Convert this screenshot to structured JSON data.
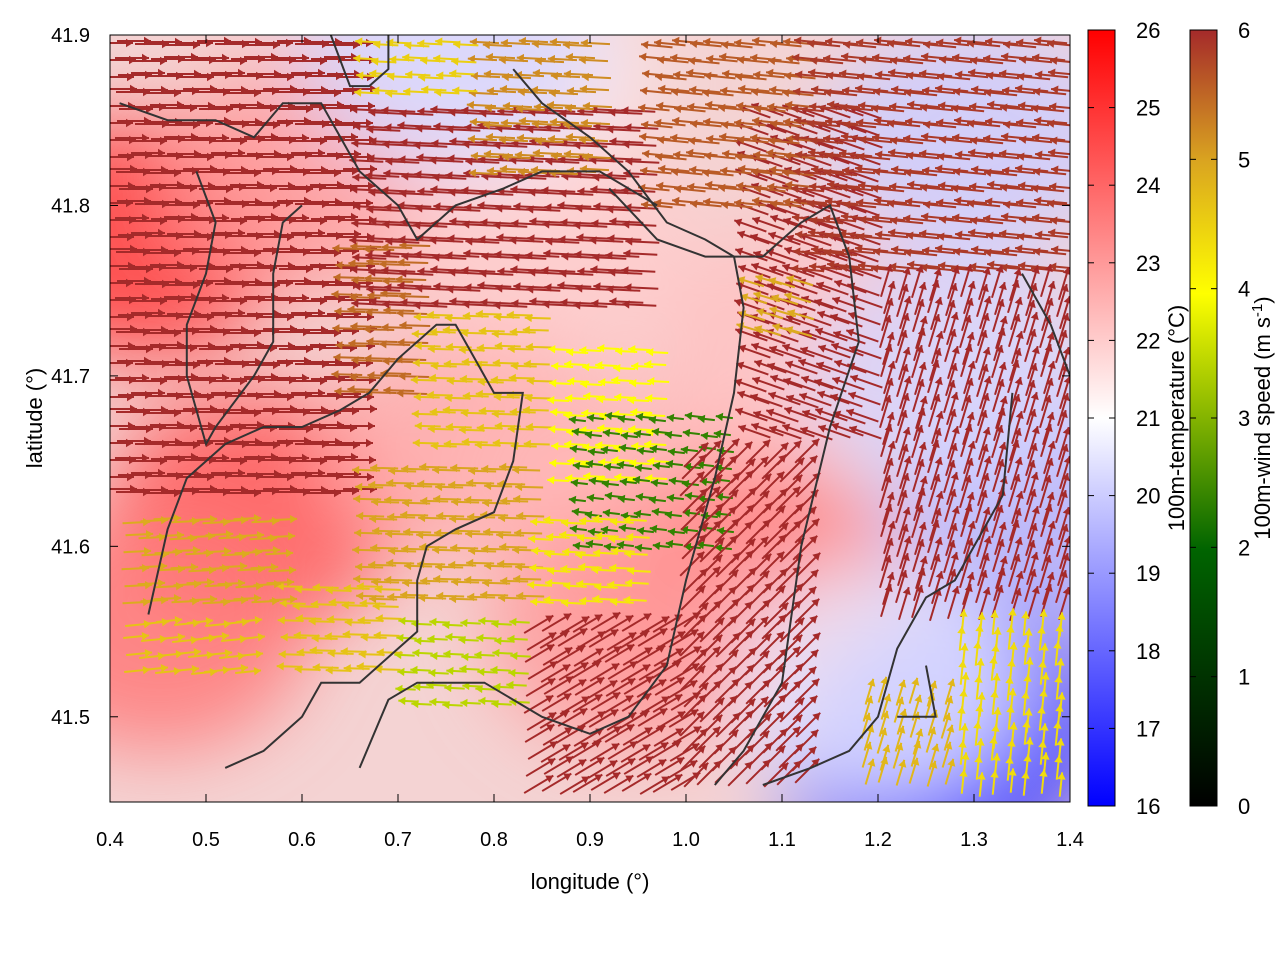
{
  "chart_data": {
    "type": "heatmap",
    "title": "",
    "xlabel": "longitude (°)",
    "ylabel": "latitude (°)",
    "xlim": [
      0.4,
      1.4
    ],
    "ylim": [
      41.45,
      41.9
    ],
    "x_ticks": [
      "0.4",
      "0.5",
      "0.6",
      "0.7",
      "0.8",
      "0.9",
      "1.0",
      "1.1",
      "1.2",
      "1.3",
      "1.4"
    ],
    "x_tick_values": [
      0.4,
      0.5,
      0.6,
      0.7,
      0.8,
      0.9,
      1.0,
      1.1,
      1.2,
      1.3,
      1.4
    ],
    "y_ticks": [
      "41.5",
      "41.6",
      "41.7",
      "41.8",
      "41.9"
    ],
    "y_tick_values": [
      41.5,
      41.6,
      41.7,
      41.8,
      41.9
    ],
    "temperature_colorbar": {
      "label": "100m-temperature (°C)",
      "range": [
        16,
        26
      ],
      "ticks": [
        "16",
        "17",
        "18",
        "19",
        "20",
        "21",
        "22",
        "23",
        "24",
        "25",
        "26"
      ],
      "colors": [
        "#0000ff",
        "#ffffff",
        "#ff0000"
      ]
    },
    "wind_colorbar": {
      "label_main": "100m-wind speed (m s",
      "label_sup": "-1",
      "label_end": ")",
      "range": [
        0,
        6
      ],
      "ticks": [
        "0",
        "1",
        "2",
        "3",
        "4",
        "5",
        "6"
      ],
      "colors": [
        "#000000",
        "#006400",
        "#ffff00",
        "#daa520",
        "#a52a2a"
      ]
    },
    "temperature_regions": [
      {
        "lon": 0.43,
        "lat": 41.78,
        "value": 24.8
      },
      {
        "lon": 0.55,
        "lat": 41.62,
        "value": 24.3
      },
      {
        "lon": 0.45,
        "lat": 41.55,
        "value": 23.6
      },
      {
        "lon": 0.62,
        "lat": 41.82,
        "value": 22.9
      },
      {
        "lon": 0.78,
        "lat": 41.66,
        "value": 22.6
      },
      {
        "lon": 0.95,
        "lat": 41.63,
        "value": 22.4
      },
      {
        "lon": 1.07,
        "lat": 41.58,
        "value": 23.5
      },
      {
        "lon": 1.12,
        "lat": 41.72,
        "value": 22.2
      },
      {
        "lon": 0.85,
        "lat": 41.78,
        "value": 22.0
      },
      {
        "lon": 0.95,
        "lat": 41.55,
        "value": 23.0
      },
      {
        "lon": 0.8,
        "lat": 41.88,
        "value": 21.4
      },
      {
        "lon": 0.75,
        "lat": 41.89,
        "value": 20.2
      },
      {
        "lon": 1.3,
        "lat": 41.84,
        "value": 20.0
      },
      {
        "lon": 1.37,
        "lat": 41.62,
        "value": 19.5
      },
      {
        "lon": 1.3,
        "lat": 41.5,
        "value": 17.6
      },
      {
        "lon": 1.25,
        "lat": 41.47,
        "value": 17.2
      },
      {
        "lon": 1.2,
        "lat": 41.52,
        "value": 20.6
      },
      {
        "lon": 1.28,
        "lat": 41.7,
        "value": 20.2
      }
    ],
    "wind_regions": [
      {
        "lon_range": [
          0.4,
          0.66
        ],
        "lat_range": [
          41.63,
          41.9
        ],
        "u": 1,
        "v": 0,
        "speed": 6,
        "note_free": ""
      },
      {
        "lon_range": [
          0.64,
          0.72
        ],
        "lat_range": [
          41.69,
          41.78
        ],
        "u": -1,
        "v": 0.03,
        "speed": 5.2
      },
      {
        "lon_range": [
          0.72,
          0.86
        ],
        "lat_range": [
          41.66,
          41.74
        ],
        "u": -1,
        "v": 0.03,
        "speed": 4.0
      },
      {
        "lon_range": [
          0.86,
          0.98
        ],
        "lat_range": [
          41.64,
          41.72
        ],
        "u": -1,
        "v": 0.05,
        "speed": 3.0
      },
      {
        "lon_range": [
          0.88,
          1.04
        ],
        "lat_range": [
          41.6,
          41.68
        ],
        "u": -1,
        "v": 0.12,
        "speed": 1.8
      },
      {
        "lon_range": [
          0.66,
          0.84
        ],
        "lat_range": [
          41.57,
          41.65
        ],
        "u": -1,
        "v": 0.03,
        "speed": 4.5
      },
      {
        "lon_range": [
          0.84,
          0.96
        ],
        "lat_range": [
          41.56,
          41.62
        ],
        "u": -1,
        "v": 0.05,
        "speed": 3.4
      },
      {
        "lon_range": [
          0.7,
          0.84
        ],
        "lat_range": [
          41.5,
          41.56
        ],
        "u": -1,
        "v": 0.05,
        "speed": 2.6
      },
      {
        "lon_range": [
          0.58,
          0.7
        ],
        "lat_range": [
          41.52,
          41.58
        ],
        "u": -1,
        "v": 0.03,
        "speed": 4.0
      },
      {
        "lon_range": [
          0.42,
          0.58
        ],
        "lat_range": [
          41.56,
          41.62
        ],
        "u": 1,
        "v": 0.05,
        "speed": 4.4
      },
      {
        "lon_range": [
          0.42,
          0.56
        ],
        "lat_range": [
          41.52,
          41.56
        ],
        "u": 1,
        "v": 0.1,
        "speed": 4.0
      },
      {
        "lon_range": [
          0.84,
          1.0
        ],
        "lat_range": [
          41.46,
          41.56
        ],
        "u": 1,
        "v": 0.6,
        "speed": 6
      },
      {
        "lon_range": [
          1.0,
          1.14
        ],
        "lat_range": [
          41.46,
          41.66
        ],
        "u": 0.9,
        "v": 0.9,
        "speed": 6
      },
      {
        "lon_range": [
          1.06,
          1.2
        ],
        "lat_range": [
          41.66,
          41.86
        ],
        "u": -1,
        "v": 0.35,
        "speed": 6
      },
      {
        "lon_range": [
          0.66,
          0.96
        ],
        "lat_range": [
          41.74,
          41.86
        ],
        "u": -1,
        "v": 0.05,
        "speed": 6
      },
      {
        "lon_range": [
          0.78,
          0.92
        ],
        "lat_range": [
          41.82,
          41.9
        ],
        "u": -1,
        "v": 0.05,
        "speed": 4.8
      },
      {
        "lon_range": [
          0.66,
          0.78
        ],
        "lat_range": [
          41.86,
          41.9
        ],
        "u": -1,
        "v": 0.05,
        "speed": 3.8
      },
      {
        "lon_range": [
          0.96,
          1.12
        ],
        "lat_range": [
          41.8,
          41.9
        ],
        "u": -1,
        "v": 0.1,
        "speed": 5.4
      },
      {
        "lon_range": [
          1.12,
          1.4
        ],
        "lat_range": [
          41.76,
          41.9
        ],
        "u": -1,
        "v": 0.1,
        "speed": 5.8
      },
      {
        "lon_range": [
          1.06,
          1.12
        ],
        "lat_range": [
          41.72,
          41.76
        ],
        "u": -1,
        "v": 0.3,
        "speed": 4.4
      },
      {
        "lon_range": [
          1.2,
          1.4
        ],
        "lat_range": [
          41.56,
          41.76
        ],
        "u": 0.3,
        "v": 1,
        "speed": 6
      },
      {
        "lon_range": [
          1.28,
          1.4
        ],
        "lat_range": [
          41.46,
          41.56
        ],
        "u": 0.1,
        "v": 1,
        "speed": 3.6
      },
      {
        "lon_range": [
          1.18,
          1.28
        ],
        "lat_range": [
          41.46,
          41.52
        ],
        "u": 0.3,
        "v": 1,
        "speed": 4.2
      }
    ],
    "contours": [
      [
        [
          0.41,
          41.86
        ],
        [
          0.46,
          41.85
        ],
        [
          0.51,
          41.85
        ],
        [
          0.55,
          41.84
        ],
        [
          0.58,
          41.86
        ],
        [
          0.62,
          41.86
        ],
        [
          0.64,
          41.84
        ],
        [
          0.66,
          41.82
        ],
        [
          0.7,
          41.8
        ],
        [
          0.72,
          41.78
        ],
        [
          0.76,
          41.8
        ],
        [
          0.81,
          41.81
        ],
        [
          0.85,
          41.82
        ],
        [
          0.91,
          41.82
        ],
        [
          0.97,
          41.8
        ]
      ],
      [
        [
          0.49,
          41.82
        ],
        [
          0.51,
          41.79
        ],
        [
          0.5,
          41.76
        ],
        [
          0.48,
          41.73
        ],
        [
          0.48,
          41.7
        ],
        [
          0.5,
          41.66
        ],
        [
          0.51,
          41.67
        ],
        [
          0.55,
          41.7
        ],
        [
          0.57,
          41.72
        ],
        [
          0.57,
          41.76
        ],
        [
          0.58,
          41.79
        ],
        [
          0.6,
          41.8
        ]
      ],
      [
        [
          0.44,
          41.56
        ],
        [
          0.46,
          41.61
        ],
        [
          0.48,
          41.64
        ],
        [
          0.52,
          41.66
        ],
        [
          0.56,
          41.67
        ],
        [
          0.6,
          41.67
        ],
        [
          0.64,
          41.68
        ],
        [
          0.67,
          41.69
        ],
        [
          0.7,
          41.71
        ],
        [
          0.74,
          41.73
        ],
        [
          0.76,
          41.73
        ],
        [
          0.78,
          41.71
        ],
        [
          0.8,
          41.69
        ],
        [
          0.83,
          41.69
        ],
        [
          0.82,
          41.65
        ],
        [
          0.8,
          41.62
        ],
        [
          0.76,
          41.61
        ],
        [
          0.73,
          41.6
        ],
        [
          0.72,
          41.58
        ],
        [
          0.72,
          41.55
        ],
        [
          0.7,
          41.54
        ],
        [
          0.66,
          41.52
        ],
        [
          0.62,
          41.52
        ],
        [
          0.6,
          41.5
        ],
        [
          0.56,
          41.48
        ],
        [
          0.52,
          41.47
        ]
      ],
      [
        [
          0.66,
          41.47
        ],
        [
          0.69,
          41.51
        ],
        [
          0.72,
          41.52
        ],
        [
          0.75,
          41.52
        ],
        [
          0.79,
          41.52
        ],
        [
          0.85,
          41.5
        ],
        [
          0.9,
          41.49
        ],
        [
          0.94,
          41.5
        ],
        [
          0.98,
          41.53
        ],
        [
          1.0,
          41.58
        ],
        [
          1.03,
          41.64
        ],
        [
          1.05,
          41.69
        ],
        [
          1.06,
          41.74
        ],
        [
          1.05,
          41.77
        ],
        [
          1.02,
          41.78
        ],
        [
          0.98,
          41.79
        ],
        [
          0.94,
          41.82
        ],
        [
          0.9,
          41.84
        ],
        [
          0.85,
          41.86
        ],
        [
          0.82,
          41.88
        ]
      ],
      [
        [
          0.92,
          41.81
        ],
        [
          0.97,
          41.78
        ],
        [
          1.02,
          41.77
        ],
        [
          1.08,
          41.77
        ],
        [
          1.12,
          41.79
        ],
        [
          1.15,
          41.8
        ],
        [
          1.17,
          41.77
        ],
        [
          1.18,
          41.72
        ],
        [
          1.15,
          41.67
        ],
        [
          1.12,
          41.6
        ],
        [
          1.1,
          41.52
        ],
        [
          1.06,
          41.48
        ],
        [
          1.03,
          41.46
        ]
      ],
      [
        [
          1.34,
          41.69
        ],
        [
          1.33,
          41.63
        ],
        [
          1.31,
          41.61
        ],
        [
          1.28,
          41.58
        ],
        [
          1.25,
          41.57
        ],
        [
          1.22,
          41.54
        ],
        [
          1.2,
          41.5
        ],
        [
          1.17,
          41.48
        ],
        [
          1.13,
          41.47
        ],
        [
          1.08,
          41.46
        ]
      ],
      [
        [
          1.35,
          41.76
        ],
        [
          1.38,
          41.73
        ],
        [
          1.4,
          41.7
        ]
      ],
      [
        [
          0.63,
          41.9
        ],
        [
          0.65,
          41.87
        ],
        [
          0.67,
          41.87
        ],
        [
          0.69,
          41.88
        ],
        [
          0.69,
          41.9
        ]
      ],
      [
        [
          1.25,
          41.53
        ],
        [
          1.26,
          41.5
        ],
        [
          1.22,
          41.5
        ]
      ]
    ]
  }
}
